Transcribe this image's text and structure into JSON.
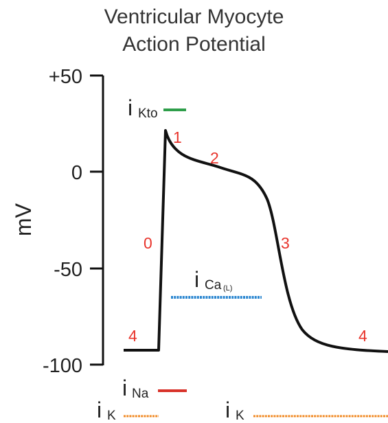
{
  "title": {
    "line1": "Ventricular Myocyte",
    "line2": "Action Potential"
  },
  "axis": {
    "ylabel": "mV",
    "ticks": [
      "+50",
      "0",
      "-50",
      "-100"
    ]
  },
  "phases": [
    "0",
    "1",
    "2",
    "3",
    "4",
    "4"
  ],
  "currents": {
    "kto": {
      "main": "i",
      "sub": "Kto",
      "color": "#2e9e4a"
    },
    "ca": {
      "main": "i",
      "sub": "Ca",
      "subsub": "(L)",
      "color": "#2a86d0"
    },
    "na": {
      "main": "i",
      "sub": "Na",
      "color": "#d8322a"
    },
    "k1": {
      "main": "i",
      "sub": "K",
      "color": "#f08a24"
    },
    "k2": {
      "main": "i",
      "sub": "K",
      "color": "#f08a24"
    }
  },
  "colors": {
    "trace": "#111111",
    "phase_label": "#e8342c"
  }
}
